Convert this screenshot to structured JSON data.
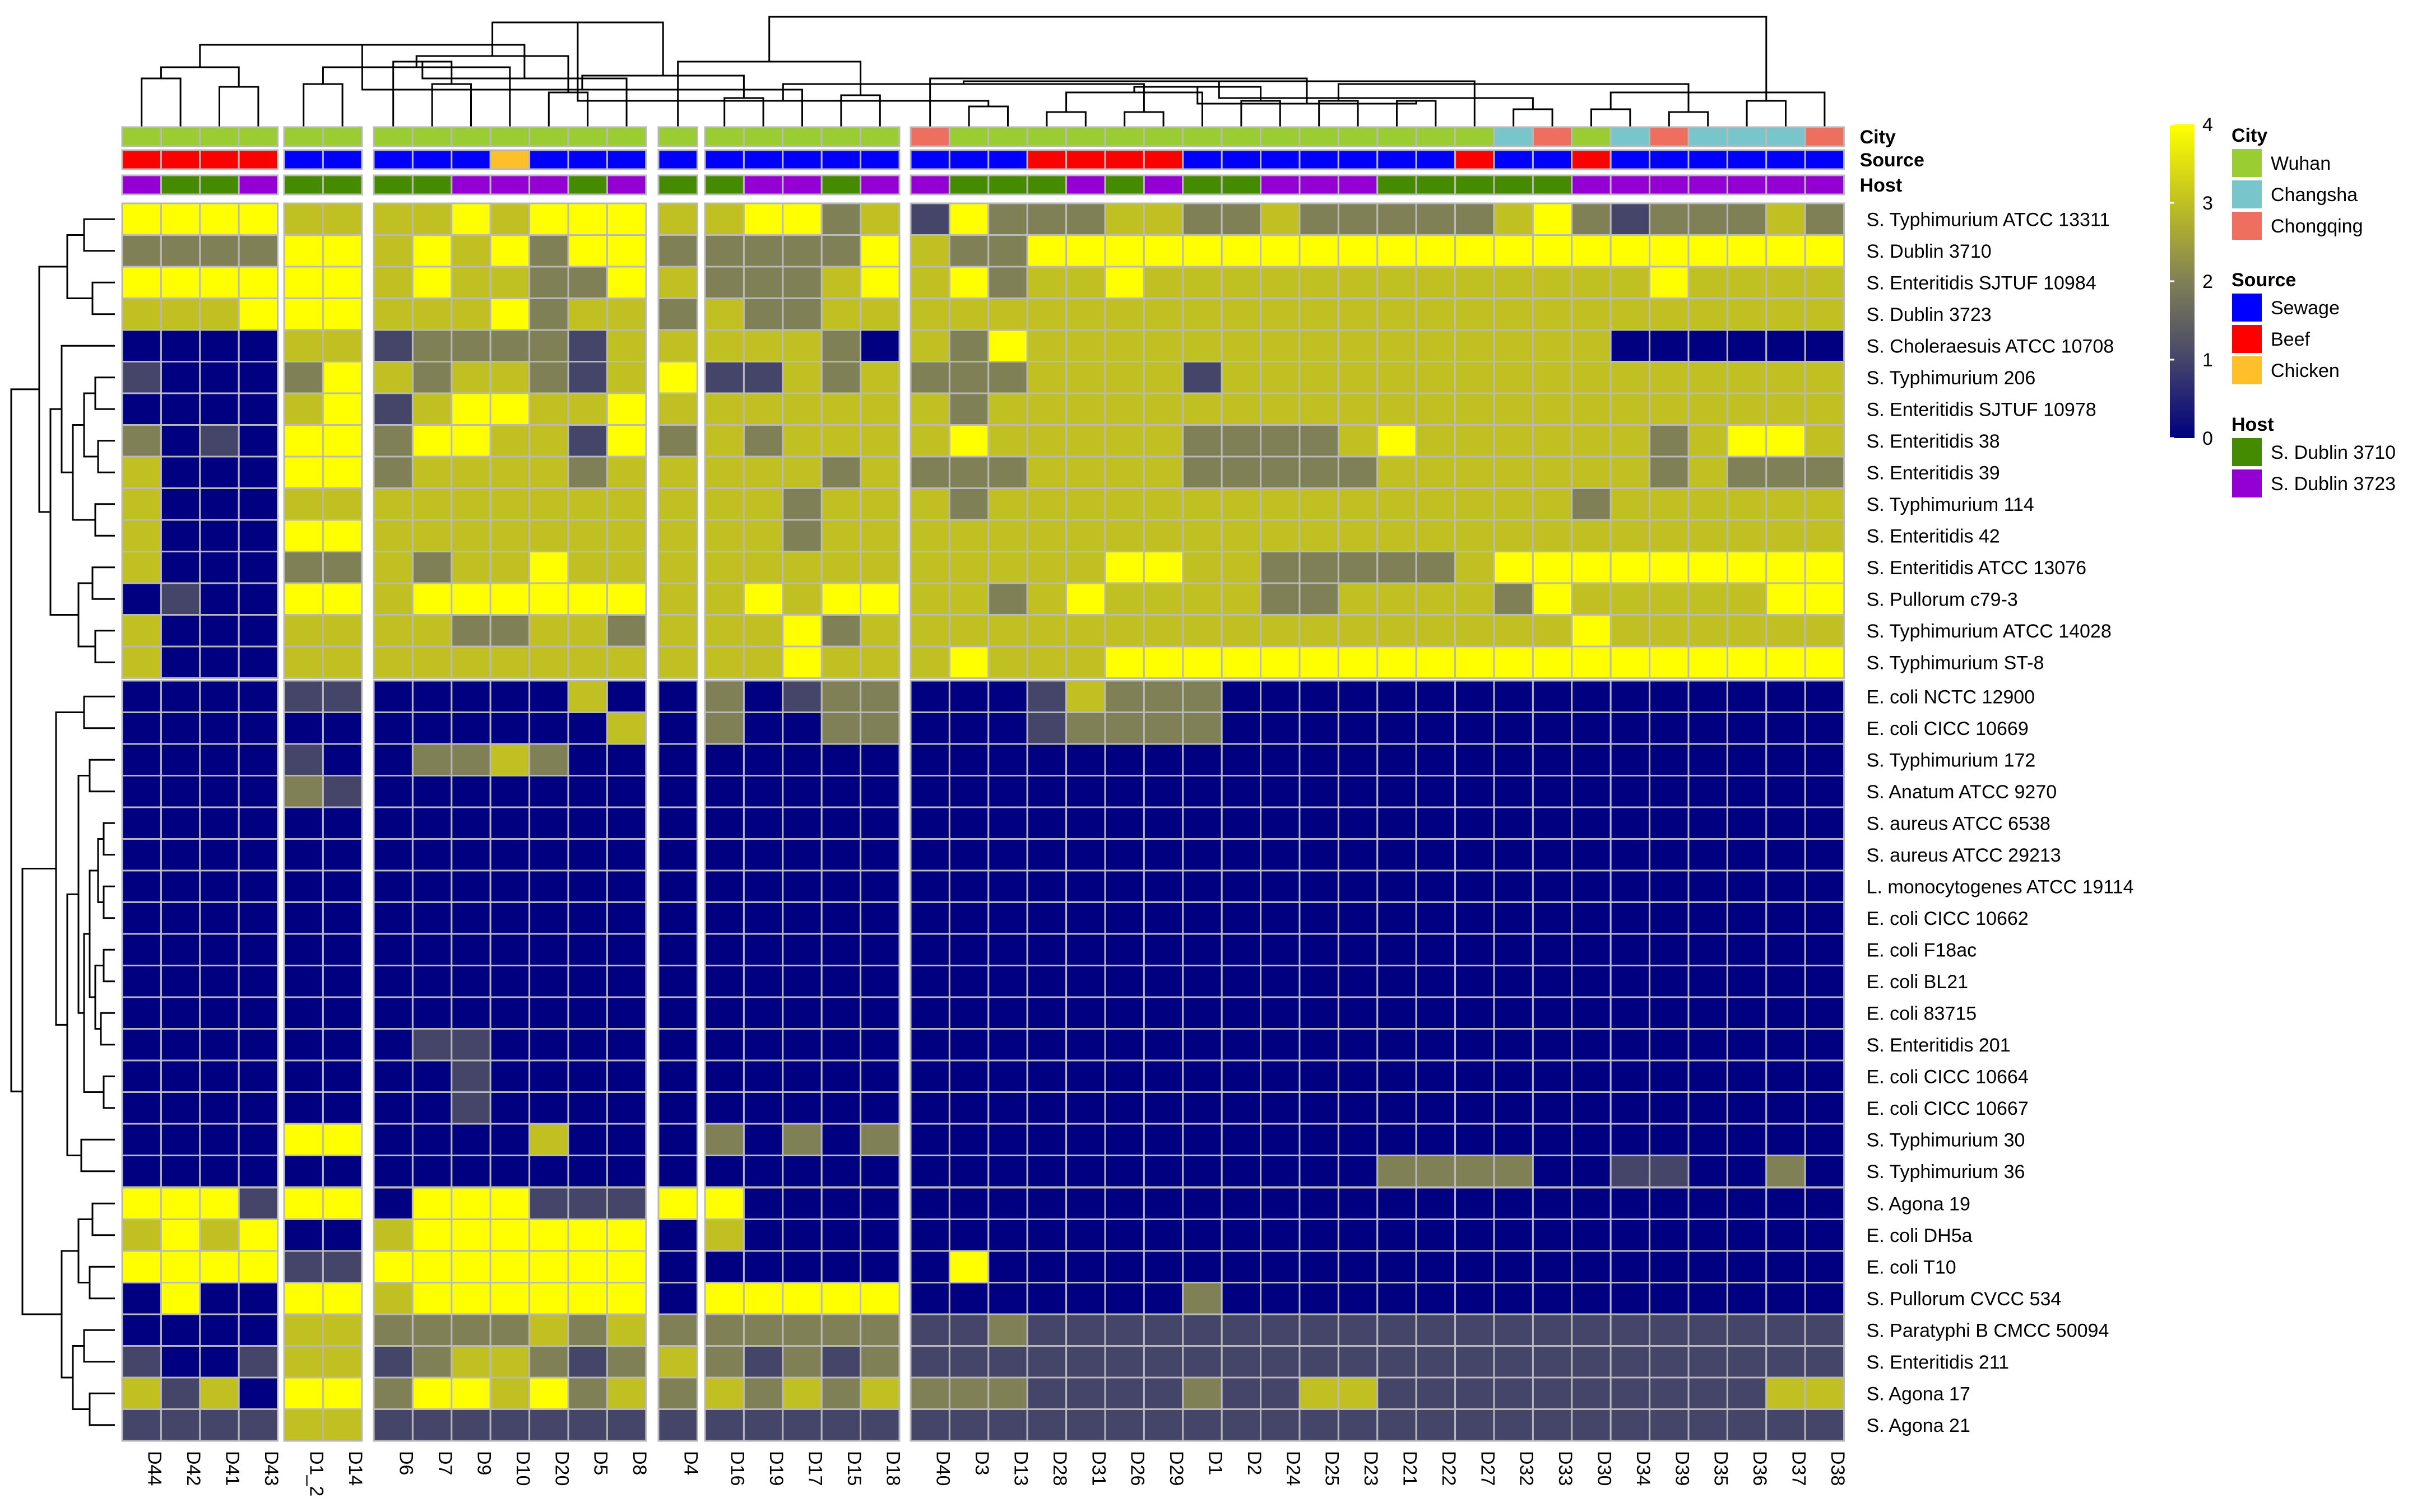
{
  "chart_data": {
    "type": "heatmap",
    "title": "",
    "value_range": [
      0,
      4
    ],
    "columns": [
      "D44",
      "D42",
      "D41",
      "D43",
      "D1_2",
      "D14",
      "D6",
      "D7",
      "D9",
      "D10",
      "D20",
      "D5",
      "D8",
      "D4",
      "D16",
      "D19",
      "D17",
      "D15",
      "D18",
      "D40",
      "D3",
      "D13",
      "D28",
      "D31",
      "D26",
      "D29",
      "D1",
      "D2",
      "D24",
      "D25",
      "D23",
      "D21",
      "D22",
      "D27",
      "D32",
      "D33",
      "D30",
      "D34",
      "D39",
      "D35",
      "D36",
      "D37",
      "D38"
    ],
    "column_groups": [
      4,
      2,
      7,
      1,
      5,
      24
    ],
    "rows": [
      "S. Typhimurium ATCC 13311",
      "S. Dublin 3710",
      "S. Enteritidis SJTUF 10984",
      "S. Dublin 3723",
      "S. Choleraesuis ATCC 10708",
      "S. Typhimurium 206",
      "S. Enteritidis SJTUF 10978",
      "S. Enteritidis 38",
      "S. Enteritidis 39",
      "S. Typhimurium 114",
      "S. Enteritidis 42",
      "S. Enteritidis ATCC 13076",
      "S. Pullorum c79-3",
      "S. Typhimurium ATCC 14028",
      "S. Typhimurium ST-8",
      "E. coli NCTC 12900",
      "E. coli CICC 10669",
      "S. Typhimurium 172",
      "S. Anatum ATCC 9270",
      "S. aureus ATCC 6538",
      "S. aureus ATCC 29213",
      "L. monocytogenes ATCC 19114",
      "E. coli CICC 10662",
      "E. coli F18ac",
      "E. coli BL21",
      "E. coli 83715",
      "S. Enteritidis 201",
      "E. coli CICC 10664",
      "E. coli CICC 10667",
      "S. Typhimurium 30",
      "S. Typhimurium 36",
      "S. Agona 19",
      "E. coli DH5a",
      "E. coli T10",
      "S. Pullorum CVCC 534",
      "S. Paratyphi B CMCC 50094",
      "S. Enteritidis 211",
      "S. Agona 17",
      "S. Agona 21"
    ],
    "row_groups": [
      15,
      16,
      8
    ],
    "values": [
      "4444333343444334423142223322322222342122232",
      "2222443434244222224322444444444444444444444",
      "4444443433224322234342334333333333333343333",
      "3334443334233232233333333333333333333333333",
      "0000331222213333320324333333333333333000000",
      "1000243233213411323222333313333333333333333",
      "0000341344334333333323333333333333333333333",
      "2010442443314232333343333322223433333323443",
      "3000442333323333323222333322222333333323222",
      "3000333333333333233323333333333333332333333",
      "3000443333333333233333333333333333333333333",
      "3000223233433333333333334433222223444444444",
      "0100443444444334344332343333223333243333344",
      "3000333322332333423333333333333333334333333",
      "3000333333333333433343334444444444444444444",
      "0000110000030020122000132220000000000000000",
      "0000000000003020022000122220000000000000000",
      "0000100223200000000000000000000000000000000",
      "0000210000000000000000000000000000000000000",
      "0000000000000000000000000000000000000000000",
      "0000000000000000000000000000000000000000000",
      "0000000000000000000000000000000000000000000",
      "0000000000000000000000000000000000000000000",
      "0000000000000000000000000000000000000000000",
      "0000000000000000000000000000000000000000000",
      "0000000000000000000000000000000000000000000",
      "0000000110000000000000000000000000000000000",
      "0000000010000000000000000000000000000000000",
      "0000000010000000000000000000000000000000000",
      "0000440000300020202000000000000000000000000",
      "0000000000000000000000000000000222200110020",
      "4441440444111440000000000000000000000000000",
      "3434003444444030000000000000000000000000000",
      "4444114444444000000040000000000000000000000",
      "0400443444444044444000000020000000000000000",
      "0000332222323222222112111111111111111111111",
      "1001331233212321212111111111111111111111111",
      "3130442443423232323222111121133111111111133",
      "1111331111111111111111111111111111111111111"
    ],
    "colorbar": {
      "ticks": [
        "0",
        "1",
        "2",
        "3",
        "4"
      ],
      "colors": [
        "#000080",
        "#45456a",
        "#808057",
        "#c0c022",
        "#ffff00"
      ]
    },
    "annotations": [
      {
        "name": "City",
        "levels": [
          {
            "label": "Wuhan",
            "color": "#9acd32"
          },
          {
            "label": "Changsha",
            "color": "#79c5cc"
          },
          {
            "label": "Chongqing",
            "color": "#ee6f5d"
          }
        ],
        "values": [
          0,
          0,
          0,
          0,
          0,
          0,
          0,
          0,
          0,
          0,
          0,
          0,
          0,
          0,
          0,
          0,
          0,
          0,
          0,
          2,
          0,
          0,
          0,
          0,
          0,
          0,
          0,
          0,
          0,
          0,
          0,
          0,
          0,
          0,
          1,
          2,
          0,
          1,
          2,
          1,
          1,
          1,
          2
        ]
      },
      {
        "name": "Source",
        "levels": [
          {
            "label": "Sewage",
            "color": "#0000ff"
          },
          {
            "label": "Beef",
            "color": "#ff0000"
          },
          {
            "label": "Chicken",
            "color": "#ffbf2a"
          }
        ],
        "values": [
          1,
          1,
          1,
          1,
          0,
          0,
          0,
          0,
          0,
          2,
          0,
          0,
          0,
          0,
          0,
          0,
          0,
          0,
          0,
          0,
          0,
          0,
          1,
          1,
          1,
          1,
          0,
          0,
          0,
          0,
          0,
          0,
          0,
          1,
          0,
          0,
          1,
          0,
          0,
          0,
          0,
          0,
          0
        ]
      },
      {
        "name": "Host",
        "levels": [
          {
            "label": "S. Dublin 3710",
            "color": "#458b00"
          },
          {
            "label": "S. Dublin 3723",
            "color": "#9400d3"
          }
        ],
        "values": [
          1,
          0,
          0,
          1,
          0,
          0,
          0,
          0,
          1,
          1,
          1,
          0,
          1,
          0,
          0,
          1,
          1,
          0,
          1,
          1,
          0,
          0,
          0,
          1,
          0,
          1,
          0,
          0,
          1,
          1,
          1,
          0,
          0,
          0,
          0,
          0,
          1,
          1,
          1,
          1,
          1,
          1,
          1
        ]
      }
    ]
  }
}
